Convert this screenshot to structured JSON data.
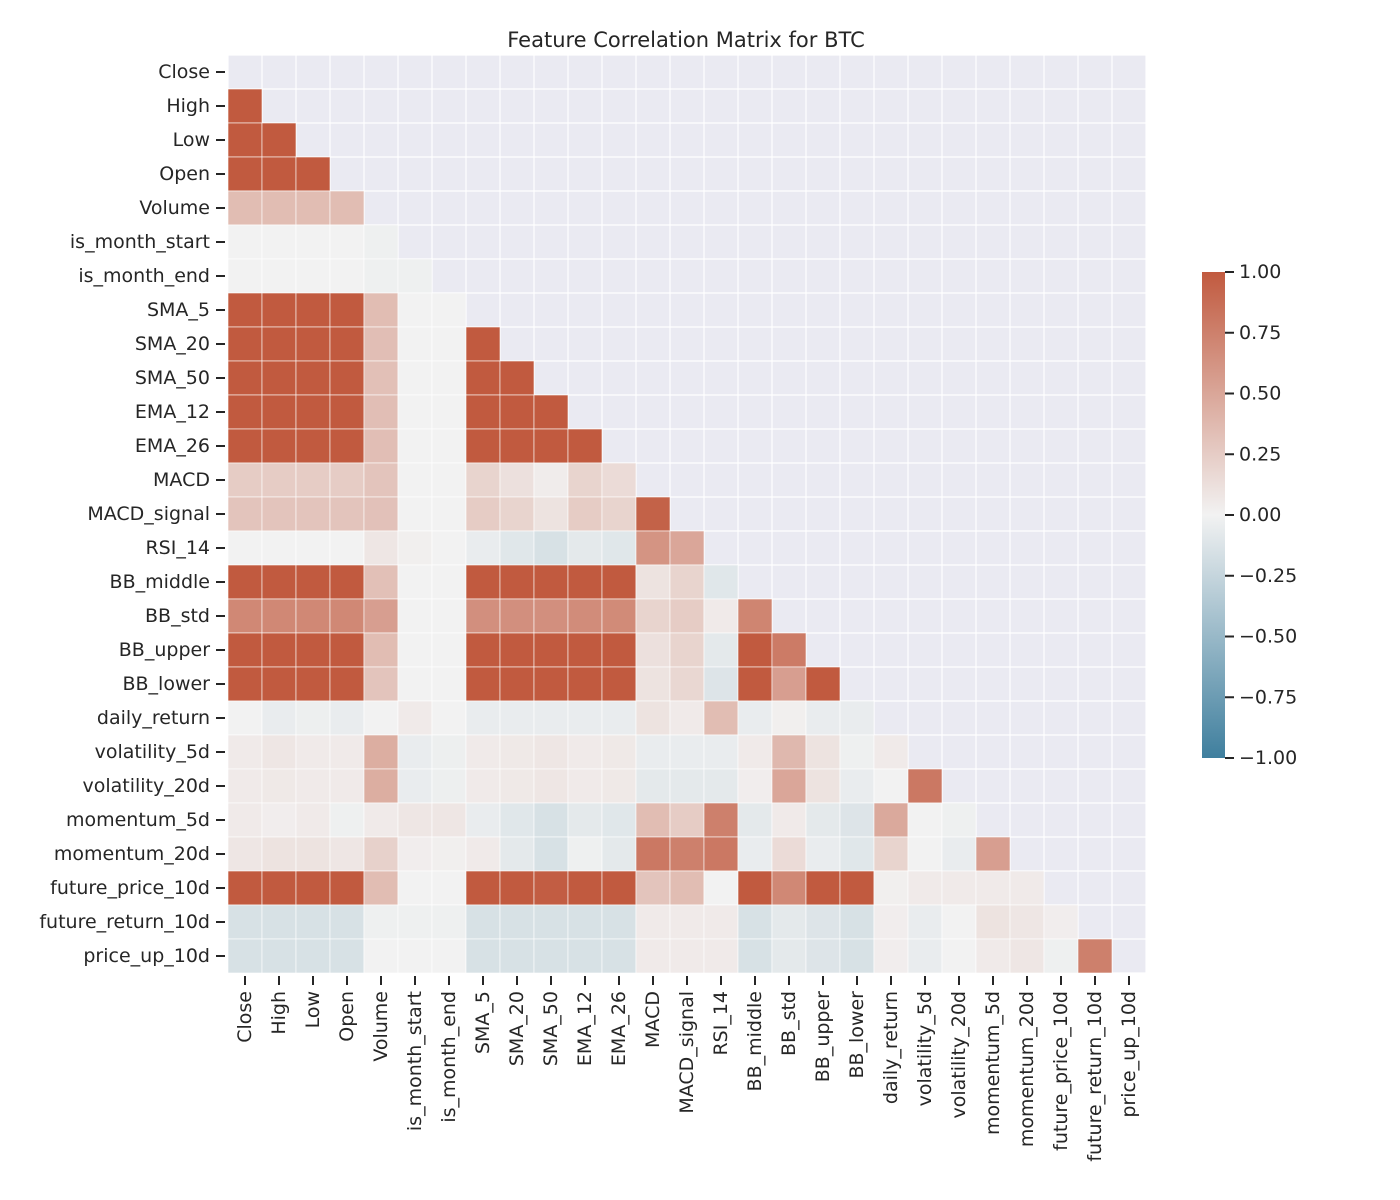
{
  "chart_data": {
    "type": "heatmap",
    "title": "Feature Correlation Matrix for BTC",
    "labels": [
      "Close",
      "High",
      "Low",
      "Open",
      "Volume",
      "is_month_start",
      "is_month_end",
      "SMA_5",
      "SMA_20",
      "SMA_50",
      "EMA_12",
      "EMA_26",
      "MACD",
      "MACD_signal",
      "RSI_14",
      "BB_middle",
      "BB_std",
      "BB_upper",
      "BB_lower",
      "daily_return",
      "volatility_5d",
      "volatility_20d",
      "momentum_5d",
      "momentum_20d",
      "future_price_10d",
      "future_return_10d",
      "price_up_10d"
    ],
    "mask": "upper-triangle-and-diagonal",
    "value_range": [
      -1.0,
      1.0
    ],
    "colorbar": {
      "ticks": [
        1.0,
        0.75,
        0.5,
        0.25,
        0.0,
        -0.25,
        -0.5,
        -0.75,
        -1.0
      ],
      "tick_labels": [
        "1.00",
        "0.75",
        "0.50",
        "0.25",
        "0.00",
        "−0.25",
        "−0.50",
        "−0.75",
        "−1.00"
      ]
    },
    "colormap": {
      "low": "#3f7f9e",
      "mid": "#f2f2f2",
      "high": "#c15a3f"
    },
    "background_color": "#eaeaf2",
    "rows": [
      [],
      [
        1.0
      ],
      [
        1.0,
        1.0
      ],
      [
        1.0,
        1.0,
        1.0
      ],
      [
        0.35,
        0.35,
        0.35,
        0.35
      ],
      [
        0.0,
        0.0,
        0.0,
        0.0,
        -0.02
      ],
      [
        0.0,
        0.0,
        0.0,
        0.0,
        -0.02,
        -0.02
      ],
      [
        1.0,
        1.0,
        1.0,
        1.0,
        0.35,
        0.0,
        0.0
      ],
      [
        1.0,
        1.0,
        1.0,
        1.0,
        0.34,
        0.0,
        0.0,
        1.0
      ],
      [
        1.0,
        1.0,
        1.0,
        1.0,
        0.33,
        0.0,
        0.0,
        1.0,
        1.0
      ],
      [
        1.0,
        1.0,
        1.0,
        1.0,
        0.34,
        0.0,
        0.0,
        1.0,
        1.0,
        1.0
      ],
      [
        1.0,
        1.0,
        1.0,
        1.0,
        0.34,
        0.0,
        0.0,
        1.0,
        1.0,
        1.0,
        1.0
      ],
      [
        0.25,
        0.25,
        0.25,
        0.25,
        0.3,
        0.0,
        0.0,
        0.2,
        0.12,
        0.04,
        0.2,
        0.15
      ],
      [
        0.3,
        0.3,
        0.3,
        0.3,
        0.32,
        0.0,
        0.0,
        0.25,
        0.2,
        0.1,
        0.25,
        0.2,
        0.95
      ],
      [
        0.0,
        0.0,
        0.0,
        0.0,
        0.08,
        0.02,
        0.0,
        -0.05,
        -0.1,
        -0.15,
        -0.08,
        -0.1,
        0.62,
        0.5
      ],
      [
        1.0,
        1.0,
        1.0,
        1.0,
        0.33,
        0.0,
        0.0,
        1.0,
        1.0,
        1.0,
        1.0,
        1.0,
        0.1,
        0.2,
        -0.1
      ],
      [
        0.7,
        0.7,
        0.7,
        0.7,
        0.55,
        0.0,
        0.0,
        0.65,
        0.65,
        0.65,
        0.67,
        0.68,
        0.2,
        0.25,
        0.05,
        0.72
      ],
      [
        1.0,
        1.0,
        1.0,
        1.0,
        0.35,
        0.0,
        0.0,
        1.0,
        1.0,
        1.0,
        1.0,
        1.0,
        0.12,
        0.2,
        -0.08,
        1.0,
        0.78
      ],
      [
        1.0,
        1.0,
        1.0,
        1.0,
        0.3,
        0.0,
        0.0,
        1.0,
        1.0,
        1.0,
        1.0,
        1.0,
        0.1,
        0.18,
        -0.12,
        1.0,
        0.55,
        1.0
      ],
      [
        0.0,
        -0.05,
        -0.03,
        -0.05,
        0.0,
        0.05,
        0.0,
        -0.05,
        -0.05,
        -0.05,
        -0.05,
        -0.05,
        0.1,
        0.05,
        0.35,
        -0.05,
        0.02,
        -0.05,
        -0.05
      ],
      [
        0.05,
        0.08,
        0.05,
        0.05,
        0.45,
        -0.05,
        -0.03,
        0.05,
        0.06,
        0.08,
        0.05,
        0.06,
        -0.05,
        -0.05,
        -0.05,
        0.05,
        0.38,
        0.1,
        -0.02,
        0.05
      ],
      [
        0.05,
        0.06,
        0.05,
        0.05,
        0.45,
        -0.05,
        -0.03,
        0.05,
        0.06,
        0.08,
        0.05,
        0.06,
        -0.08,
        -0.08,
        -0.08,
        0.03,
        0.5,
        0.1,
        -0.05,
        0.0,
        0.8
      ],
      [
        0.05,
        0.03,
        0.05,
        -0.02,
        0.05,
        0.08,
        0.08,
        -0.05,
        -0.1,
        -0.15,
        -0.08,
        -0.1,
        0.35,
        0.25,
        0.75,
        -0.08,
        0.05,
        -0.08,
        -0.12,
        0.48,
        0.0,
        -0.02
      ],
      [
        0.08,
        0.1,
        0.1,
        0.08,
        0.22,
        0.03,
        0.02,
        0.05,
        -0.08,
        -0.15,
        -0.02,
        -0.08,
        0.8,
        0.75,
        0.8,
        -0.05,
        0.15,
        -0.05,
        -0.1,
        0.2,
        0.0,
        -0.05,
        0.55
      ],
      [
        1.0,
        1.0,
        1.0,
        1.0,
        0.35,
        0.0,
        0.0,
        1.0,
        1.0,
        0.98,
        1.0,
        1.0,
        0.3,
        0.35,
        0.0,
        1.0,
        0.7,
        1.0,
        1.0,
        0.02,
        0.05,
        0.05,
        0.05,
        0.05
      ],
      [
        -0.15,
        -0.15,
        -0.15,
        -0.15,
        -0.02,
        -0.02,
        -0.02,
        -0.15,
        -0.15,
        -0.15,
        -0.15,
        -0.15,
        0.05,
        0.05,
        0.05,
        -0.15,
        -0.08,
        -0.12,
        -0.15,
        0.03,
        -0.05,
        0.0,
        0.1,
        0.08,
        0.03
      ],
      [
        -0.15,
        -0.15,
        -0.15,
        -0.15,
        0.0,
        0.0,
        0.0,
        -0.15,
        -0.15,
        -0.15,
        -0.15,
        -0.15,
        0.05,
        0.05,
        0.05,
        -0.15,
        -0.08,
        -0.12,
        -0.15,
        0.03,
        -0.05,
        0.0,
        0.05,
        0.08,
        -0.02,
        0.75
      ]
    ]
  }
}
